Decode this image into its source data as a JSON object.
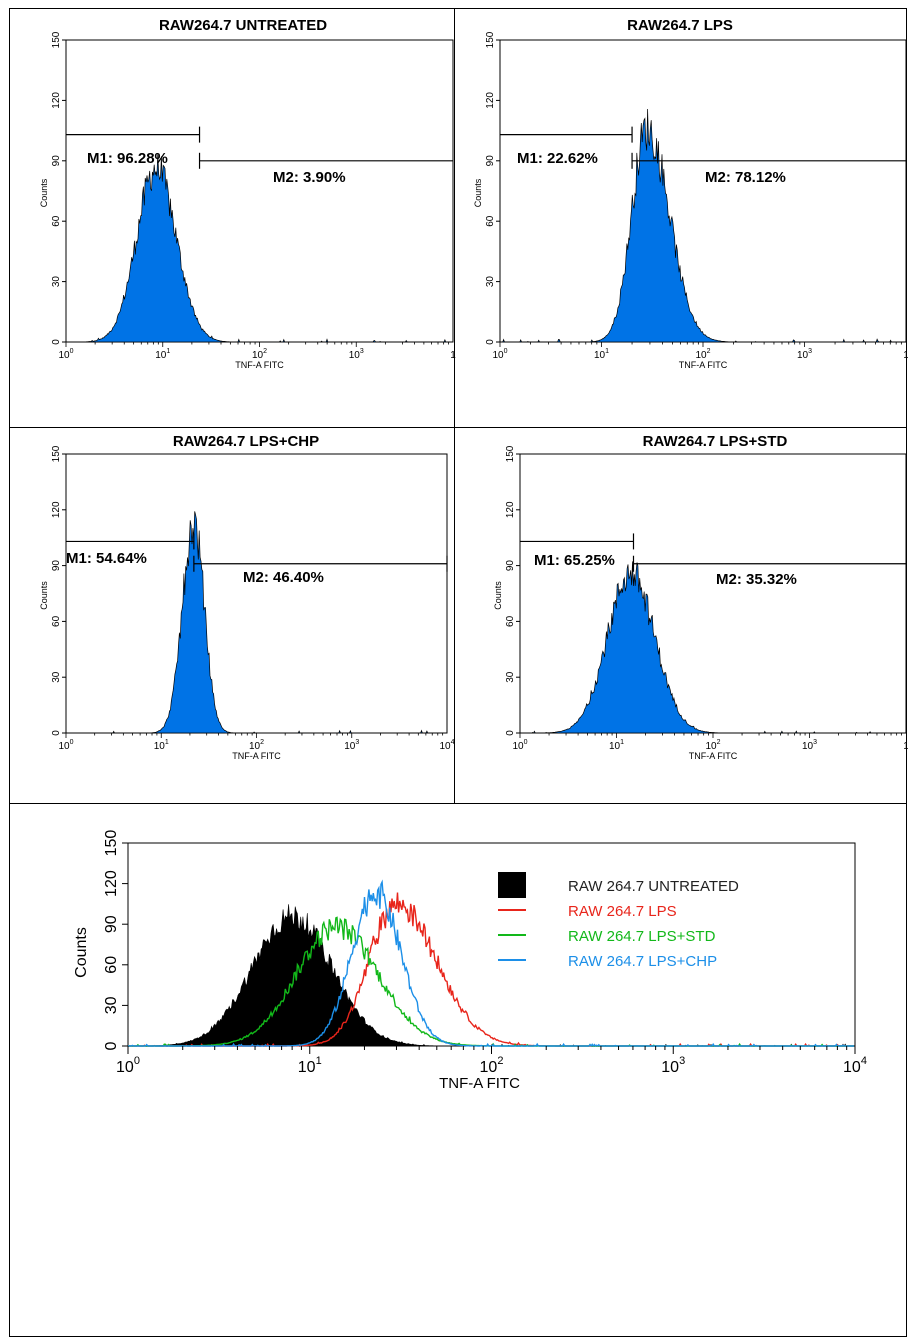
{
  "colors": {
    "hist_fill": "#0073e6",
    "untreated": "#000000",
    "lps": "#e8251b",
    "lps_std": "#12b81a",
    "lps_chp": "#1c8fe8"
  },
  "chart_data": [
    {
      "type": "area",
      "title": "RAW264.7 UNTREATED",
      "xlabel": "TNF-A FITC",
      "ylabel": "Counts",
      "xscale": "log",
      "xlim": [
        1,
        10000
      ],
      "ylim": [
        0,
        150
      ],
      "yticks": [
        "0",
        "30",
        "60",
        "90",
        "120",
        "150"
      ],
      "xticks": [
        {
          "base": "10",
          "exp": "0"
        },
        {
          "base": "10",
          "exp": "1"
        },
        {
          "base": "10",
          "exp": "2"
        },
        {
          "base": "10",
          "exp": "3"
        },
        {
          "base": "1",
          "exp": ""
        }
      ],
      "gates": [
        {
          "label": "M1: 96.28%",
          "x": [
            1,
            24
          ],
          "y": 103
        },
        {
          "label": "M2: 3.90%",
          "x": [
            24,
            10000
          ],
          "y": 90
        }
      ],
      "peak": {
        "x": 8.5,
        "counts": 86
      }
    },
    {
      "type": "area",
      "title": "RAW264.7 LPS",
      "xlabel": "TNF-A FITC",
      "ylabel": "Counts",
      "xscale": "log",
      "xlim": [
        1,
        10000
      ],
      "ylim": [
        0,
        150
      ],
      "yticks": [
        "0",
        "30",
        "60",
        "90",
        "120",
        "150"
      ],
      "xticks": [
        {
          "base": "10",
          "exp": "0"
        },
        {
          "base": "10",
          "exp": "1"
        },
        {
          "base": "10",
          "exp": "2"
        },
        {
          "base": "10",
          "exp": "3"
        },
        {
          "base": "1",
          "exp": ""
        }
      ],
      "gates": [
        {
          "label": "M1: 22.62%",
          "x": [
            1,
            20
          ],
          "y": 103
        },
        {
          "label": "M2: 78.12%",
          "x": [
            20,
            10000
          ],
          "y": 90
        }
      ],
      "peak": {
        "x": 28,
        "counts": 106
      }
    },
    {
      "type": "area",
      "title": "RAW264.7 LPS+CHP",
      "xlabel": "TNF-A FITC",
      "ylabel": "Counts",
      "xscale": "log",
      "xlim": [
        1,
        10000
      ],
      "ylim": [
        0,
        150
      ],
      "yticks": [
        "0",
        "30",
        "60",
        "90",
        "120",
        "150"
      ],
      "xticks": [
        {
          "base": "10",
          "exp": "0"
        },
        {
          "base": "10",
          "exp": "1"
        },
        {
          "base": "10",
          "exp": "2"
        },
        {
          "base": "10",
          "exp": "3"
        },
        {
          "base": "10",
          "exp": "4"
        }
      ],
      "gates": [
        {
          "label": "M1: 54.64%",
          "x": [
            1,
            22
          ],
          "y": 103
        },
        {
          "label": "M2: 46.40%",
          "x": [
            22,
            10000
          ],
          "y": 91
        }
      ],
      "peak": {
        "x": 22,
        "counts": 113
      }
    },
    {
      "type": "area",
      "title": "RAW264.7 LPS+STD",
      "xlabel": "TNF-A FITC",
      "ylabel": "Counts",
      "xscale": "log",
      "xlim": [
        1,
        10000
      ],
      "ylim": [
        0,
        150
      ],
      "yticks": [
        "0",
        "30",
        "60",
        "90",
        "120",
        "150"
      ],
      "xticks": [
        {
          "base": "10",
          "exp": "0"
        },
        {
          "base": "10",
          "exp": "1"
        },
        {
          "base": "10",
          "exp": "2"
        },
        {
          "base": "10",
          "exp": "3"
        },
        {
          "base": "1",
          "exp": ""
        }
      ],
      "gates": [
        {
          "label": "M1: 65.25%",
          "x": [
            1,
            15
          ],
          "y": 103
        },
        {
          "label": "M2: 35.32%",
          "x": [
            15,
            10000
          ],
          "y": 91
        }
      ],
      "peak": {
        "x": 14,
        "counts": 86
      }
    },
    {
      "type": "line",
      "title": "",
      "xlabel": "TNF-A FITC",
      "ylabel": "Counts",
      "xscale": "log",
      "xlim": [
        1,
        10000
      ],
      "ylim": [
        0,
        150
      ],
      "yticks": [
        "0",
        "30",
        "60",
        "90",
        "120",
        "150"
      ],
      "xticks": [
        {
          "base": "10",
          "exp": "0"
        },
        {
          "base": "10",
          "exp": "1"
        },
        {
          "base": "10",
          "exp": "2"
        },
        {
          "base": "10",
          "exp": "3"
        },
        {
          "base": "10",
          "exp": "4"
        }
      ],
      "legend_position": "top-right",
      "series": [
        {
          "name": "RAW 264.7 UNTREATED",
          "style": "filled",
          "peak": {
            "x": 8,
            "counts": 96
          }
        },
        {
          "name": "RAW 264.7 LPS",
          "style": "line",
          "peak": {
            "x": 30,
            "counts": 105
          }
        },
        {
          "name": "RAW 264.7 LPS+STD",
          "style": "line",
          "peak": {
            "x": 14,
            "counts": 88
          }
        },
        {
          "name": "RAW 264.7 LPS+CHP",
          "style": "line",
          "peak": {
            "x": 23,
            "counts": 114
          }
        }
      ]
    }
  ]
}
